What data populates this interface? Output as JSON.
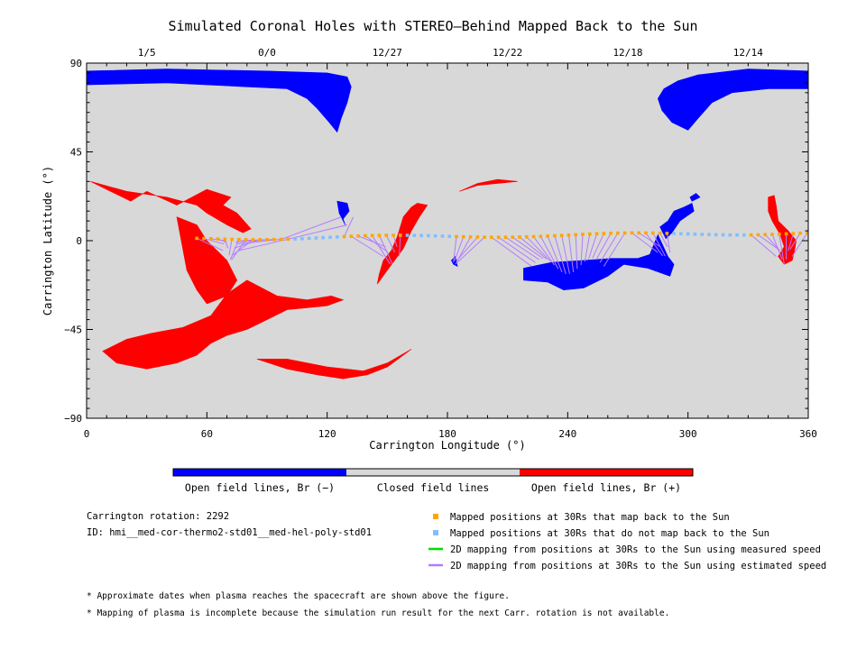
{
  "title": "Simulated Coronal Holes with STEREO–Behind Mapped Back to the Sun",
  "chart_data": {
    "type": "map",
    "title": "Simulated Coronal Holes with STEREO–Behind Mapped Back to the Sun",
    "xlabel": "Carrington Longitude (°)",
    "ylabel": "Carrington Latitude (°)",
    "xlim": [
      0,
      360
    ],
    "ylim": [
      -90,
      90
    ],
    "x_ticks": [
      0,
      60,
      120,
      180,
      240,
      300,
      360
    ],
    "y_ticks": [
      90,
      45,
      0,
      -45,
      -90
    ],
    "x_tick_labels": [
      "0",
      "60",
      "120",
      "180",
      "240",
      "300",
      "360"
    ],
    "y_tick_labels": [
      "90",
      "45",
      "0",
      "−45",
      "−90"
    ],
    "top_axis_dates": [
      {
        "label": "1/5",
        "lon": 30
      },
      {
        "label": "0/0",
        "lon": 90
      },
      {
        "label": "12/27",
        "lon": 150
      },
      {
        "label": "12/22",
        "lon": 210
      },
      {
        "label": "12/18",
        "lon": 270
      },
      {
        "label": "12/14",
        "lon": 330
      }
    ],
    "background": "#d8d8d8",
    "colors": {
      "open_negative": "#0000ff",
      "closed": "#d8d8d8",
      "open_positive": "#ff0000",
      "mapped_back": "#ffa500",
      "not_mapped": "#7fbfff",
      "measured_speed": "#00dd00",
      "estimated_speed": "#b57aff"
    },
    "coronal_holes": [
      {
        "polarity": "negative",
        "points": [
          [
            0,
            86
          ],
          [
            40,
            87
          ],
          [
            90,
            86
          ],
          [
            120,
            85
          ],
          [
            130,
            83
          ],
          [
            132,
            78
          ],
          [
            130,
            70
          ],
          [
            127,
            62
          ],
          [
            125,
            55
          ],
          [
            121,
            60
          ],
          [
            115,
            67
          ],
          [
            110,
            72
          ],
          [
            100,
            77
          ],
          [
            80,
            78
          ],
          [
            40,
            80
          ],
          [
            0,
            79
          ]
        ]
      },
      {
        "polarity": "negative",
        "points": [
          [
            360,
            86
          ],
          [
            330,
            87
          ],
          [
            305,
            84
          ],
          [
            295,
            81
          ],
          [
            288,
            77
          ],
          [
            285,
            72
          ],
          [
            287,
            66
          ],
          [
            292,
            60
          ],
          [
            300,
            56
          ],
          [
            305,
            62
          ],
          [
            312,
            70
          ],
          [
            322,
            75
          ],
          [
            340,
            77
          ],
          [
            360,
            77
          ]
        ]
      },
      {
        "polarity": "negative",
        "points": [
          [
            125,
            20
          ],
          [
            130,
            19
          ],
          [
            131,
            15
          ],
          [
            128,
            11
          ],
          [
            129,
            8
          ],
          [
            126,
            14
          ]
        ]
      },
      {
        "polarity": "negative",
        "points": [
          [
            182,
            -10
          ],
          [
            184,
            -8
          ],
          [
            185,
            -13
          ],
          [
            183,
            -12
          ]
        ]
      },
      {
        "polarity": "negative",
        "points": [
          [
            218,
            -14
          ],
          [
            232,
            -11
          ],
          [
            248,
            -10
          ],
          [
            262,
            -9
          ],
          [
            275,
            -9
          ],
          [
            281,
            -7
          ],
          [
            285,
            3
          ],
          [
            290,
            -8
          ],
          [
            293,
            -12
          ],
          [
            291,
            -18
          ],
          [
            280,
            -14
          ],
          [
            268,
            -12
          ],
          [
            260,
            -18
          ],
          [
            248,
            -24
          ],
          [
            238,
            -25
          ],
          [
            230,
            -21
          ],
          [
            218,
            -20
          ]
        ]
      },
      {
        "polarity": "negative",
        "points": [
          [
            286,
            7
          ],
          [
            290,
            10
          ],
          [
            293,
            15
          ],
          [
            298,
            17
          ],
          [
            302,
            19
          ],
          [
            303,
            15
          ],
          [
            296,
            10
          ],
          [
            292,
            4
          ],
          [
            289,
            1
          ]
        ]
      },
      {
        "polarity": "negative",
        "points": [
          [
            301,
            22
          ],
          [
            304,
            24
          ],
          [
            306,
            22
          ],
          [
            302,
            20
          ]
        ]
      },
      {
        "polarity": "positive",
        "points": [
          [
            2,
            30
          ],
          [
            20,
            25
          ],
          [
            40,
            22
          ],
          [
            55,
            18
          ],
          [
            60,
            14
          ],
          [
            70,
            8
          ],
          [
            78,
            4
          ],
          [
            82,
            6
          ],
          [
            75,
            14
          ],
          [
            68,
            18
          ],
          [
            72,
            22
          ],
          [
            60,
            26
          ],
          [
            45,
            18
          ],
          [
            30,
            25
          ],
          [
            22,
            20
          ],
          [
            12,
            25
          ]
        ]
      },
      {
        "polarity": "positive",
        "points": [
          [
            45,
            12
          ],
          [
            55,
            8
          ],
          [
            60,
            0
          ],
          [
            65,
            -5
          ],
          [
            70,
            -10
          ],
          [
            75,
            -20
          ],
          [
            70,
            -28
          ],
          [
            60,
            -32
          ],
          [
            55,
            -25
          ],
          [
            50,
            -15
          ]
        ]
      },
      {
        "polarity": "positive",
        "points": [
          [
            70,
            -27
          ],
          [
            80,
            -20
          ],
          [
            95,
            -28
          ],
          [
            110,
            -30
          ],
          [
            122,
            -28
          ],
          [
            128,
            -30
          ],
          [
            120,
            -33
          ],
          [
            100,
            -35
          ],
          [
            90,
            -40
          ],
          [
            80,
            -45
          ],
          [
            70,
            -48
          ],
          [
            62,
            -52
          ],
          [
            55,
            -58
          ],
          [
            45,
            -62
          ],
          [
            30,
            -65
          ],
          [
            15,
            -62
          ],
          [
            8,
            -56
          ],
          [
            20,
            -50
          ],
          [
            32,
            -47
          ],
          [
            48,
            -44
          ],
          [
            62,
            -38
          ]
        ]
      },
      {
        "polarity": "positive",
        "points": [
          [
            85,
            -60
          ],
          [
            100,
            -65
          ],
          [
            115,
            -68
          ],
          [
            128,
            -70
          ],
          [
            140,
            -68
          ],
          [
            150,
            -64
          ],
          [
            158,
            -58
          ],
          [
            162,
            -55
          ],
          [
            150,
            -62
          ],
          [
            138,
            -66
          ],
          [
            120,
            -64
          ],
          [
            100,
            -60
          ]
        ]
      },
      {
        "polarity": "positive",
        "points": [
          [
            148,
            -10
          ],
          [
            152,
            -5
          ],
          [
            155,
            2
          ],
          [
            158,
            12
          ],
          [
            162,
            17
          ],
          [
            165,
            19
          ],
          [
            170,
            18
          ],
          [
            166,
            12
          ],
          [
            162,
            5
          ],
          [
            158,
            -4
          ],
          [
            150,
            -15
          ],
          [
            145,
            -22
          ],
          [
            146,
            -17
          ]
        ]
      },
      {
        "polarity": "positive",
        "points": [
          [
            186,
            25
          ],
          [
            195,
            28
          ],
          [
            205,
            29
          ],
          [
            215,
            30
          ],
          [
            205,
            31
          ],
          [
            195,
            29
          ]
        ]
      },
      {
        "polarity": "positive",
        "points": [
          [
            340,
            22
          ],
          [
            343,
            23
          ],
          [
            344,
            18
          ],
          [
            345,
            10
          ],
          [
            350,
            5
          ],
          [
            354,
            0
          ],
          [
            353,
            -6
          ],
          [
            352,
            -10
          ],
          [
            348,
            -12
          ],
          [
            345,
            -8
          ],
          [
            348,
            -3
          ],
          [
            346,
            3
          ],
          [
            342,
            10
          ],
          [
            340,
            15
          ]
        ]
      }
    ],
    "mapped_positions_30Rs": {
      "lon_range": [
        55,
        360
      ],
      "lat_start": 1,
      "lat_end": 4,
      "lat_wave": 0.8,
      "spacing_deg": 3.5,
      "not_mapped_lon_ranges": [
        [
          103,
          128
        ],
        [
          158,
          182
        ],
        [
          293,
          330
        ]
      ]
    },
    "estimated_speed_mapping_groups": [
      {
        "source_lon_range": [
          55,
          102
        ],
        "target": [
          72,
          -5
        ],
        "target_spread": [
          4,
          5
        ]
      },
      {
        "source_lon_range": [
          96,
          130
        ],
        "target": [
          130,
          12
        ],
        "target_spread": [
          3,
          4
        ]
      },
      {
        "source_lon_range": [
          130,
          158
        ],
        "target": [
          152,
          -8
        ],
        "target_spread": [
          4,
          5
        ]
      },
      {
        "source_lon_range": [
          182,
          200
        ],
        "target": [
          184,
          -11
        ],
        "target_spread": [
          1,
          1
        ]
      },
      {
        "source_lon_range": [
          200,
          270
        ],
        "target": [
          240,
          -13
        ],
        "target_spread": [
          18,
          4
        ]
      },
      {
        "source_lon_range": [
          270,
          293
        ],
        "target": [
          288,
          -6
        ],
        "target_spread": [
          3,
          3
        ]
      },
      {
        "source_lon_range": [
          330,
          360
        ],
        "target": [
          348,
          -8
        ],
        "target_spread": [
          4,
          4
        ]
      }
    ],
    "colorbar": [
      {
        "label": "Open field lines, Br (−)",
        "color": "#0000ff"
      },
      {
        "label": "Closed field lines",
        "color": "#d8d8d8"
      },
      {
        "label": "Open field lines, Br (+)",
        "color": "#ff0000"
      }
    ],
    "legend": [
      {
        "label": "Mapped positions at 30Rs that map back to the Sun",
        "marker": "square",
        "color": "#ffa500"
      },
      {
        "label": "Mapped positions at 30Rs that do not map back to the Sun",
        "marker": "square",
        "color": "#7fbfff"
      },
      {
        "label": "2D mapping from positions at 30Rs to the Sun using measured speed",
        "marker": "line",
        "color": "#00dd00"
      },
      {
        "label": "2D mapping from positions at 30Rs to the Sun using estimated speed",
        "marker": "line",
        "color": "#b57aff"
      }
    ],
    "legend_placement": "bottom-right"
  },
  "info": {
    "carrington_rotation": "Carrington rotation: 2292",
    "id": "ID: hmi__med-cor-thermo2-std01__med-hel-poly-std01"
  },
  "notes": [
    "* Approximate dates when plasma reaches the spacecraft are shown above the figure.",
    "* Mapping of plasma is incomplete because the simulation run result for the next Carr. rotation is not available."
  ]
}
